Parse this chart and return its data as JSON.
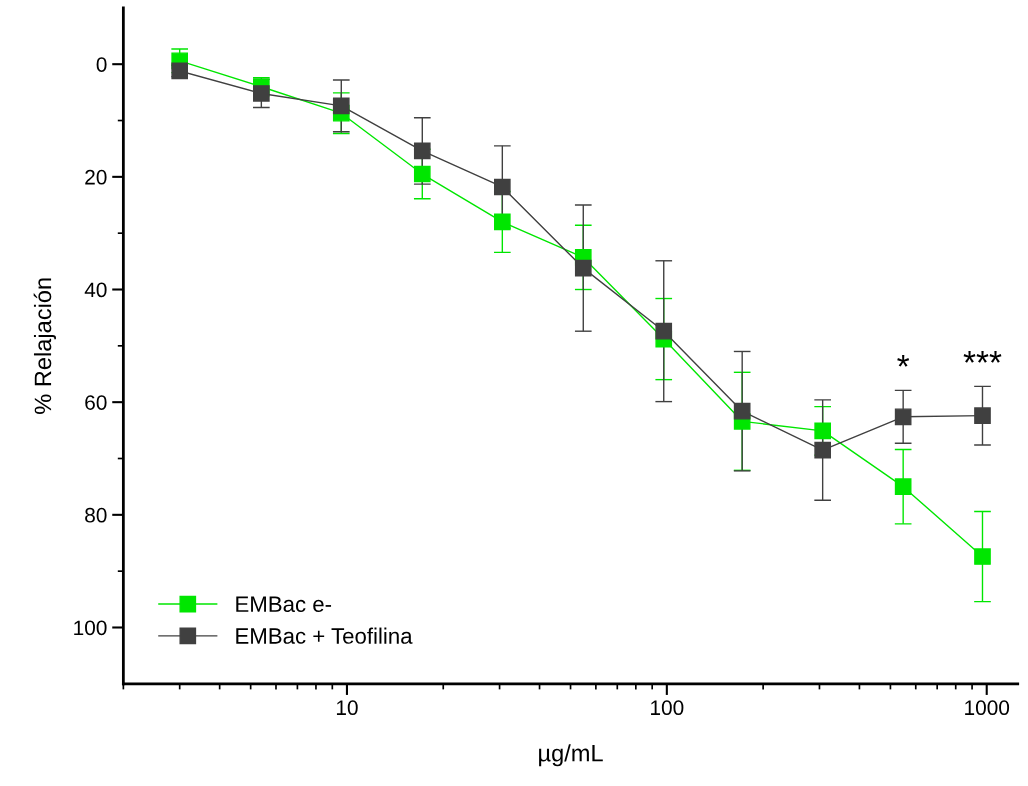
{
  "chart_data": {
    "type": "line",
    "xlabel": "µg/mL",
    "ylabel": "% Relajación",
    "x": [
      3.0,
      5.4,
      9.6,
      17.2,
      30.6,
      54.8,
      97.8,
      172,
      307,
      548,
      970
    ],
    "series": [
      {
        "name": "EMBac e-",
        "color": "#00e600",
        "values": [
          -0.6,
          4.0,
          8.7,
          19.5,
          28.0,
          34.3,
          48.8,
          63.4,
          65.1,
          75.0,
          87.4
        ],
        "errors": [
          2.1,
          1.6,
          3.6,
          4.4,
          5.4,
          5.7,
          7.2,
          8.7,
          4.3,
          6.6,
          8.0
        ]
      },
      {
        "name": "EMBac + Teofilina",
        "color": "#404040",
        "values": [
          1.2,
          5.2,
          7.4,
          15.4,
          21.8,
          36.2,
          47.4,
          61.6,
          68.5,
          62.6,
          62.4
        ],
        "errors": [
          1.0,
          2.5,
          4.6,
          5.9,
          7.3,
          11.2,
          12.5,
          10.6,
          8.9,
          4.7,
          5.2
        ]
      }
    ],
    "log": "x",
    "xlim": [
      2,
      1250
    ],
    "xticks": [
      {
        "value": 2,
        "label": null
      },
      {
        "value": 3,
        "label": null
      },
      {
        "value": 4,
        "label": null
      },
      {
        "value": 5,
        "label": null
      },
      {
        "value": 6,
        "label": null
      },
      {
        "value": 7,
        "label": null
      },
      {
        "value": 8,
        "label": null
      },
      {
        "value": 9,
        "label": null
      },
      10,
      {
        "value": 20,
        "label": null
      },
      {
        "value": 30,
        "label": null
      },
      {
        "value": 40,
        "label": null
      },
      {
        "value": 50,
        "label": null
      },
      {
        "value": 60,
        "label": null
      },
      {
        "value": 70,
        "label": null
      },
      {
        "value": 80,
        "label": null
      },
      {
        "value": 90,
        "label": null
      },
      100,
      {
        "value": 200,
        "label": null
      },
      {
        "value": 300,
        "label": null
      },
      {
        "value": 400,
        "label": null
      },
      {
        "value": 500,
        "label": null
      },
      {
        "value": 600,
        "label": null
      },
      {
        "value": 700,
        "label": null
      },
      {
        "value": 800,
        "label": null
      },
      {
        "value": 900,
        "label": null
      },
      1000
    ],
    "ylim": [
      110,
      -10
    ],
    "yticks": [
      0,
      {
        "value": 10,
        "label": null
      },
      20,
      {
        "value": 30,
        "label": null
      },
      40,
      {
        "value": 50,
        "label": null
      },
      60,
      {
        "value": 70,
        "label": null
      },
      80,
      {
        "value": 90,
        "label": null
      },
      100
    ],
    "marker": "square",
    "line_style": "solid",
    "grid": false,
    "legend": "bottom left",
    "annotations": [
      "*",
      "***"
    ]
  }
}
